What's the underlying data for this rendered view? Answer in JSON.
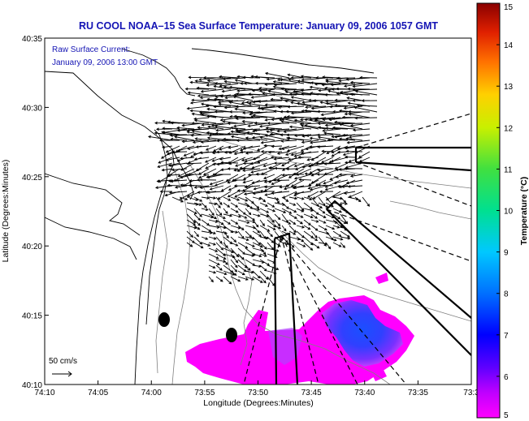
{
  "chart_data": {
    "type": "map",
    "title": "RU COOL  NOAA–15  Sea Surface Temperature:  January 09, 2006 1057 GMT",
    "annotation": {
      "line1": "Raw Surface Current:",
      "line2": "January 09, 2006 13:00 GMT"
    },
    "scale_label": "50 cm/s",
    "xlabel": "Longitude (Degrees:Minutes)",
    "ylabel": "Latitude (Degrees:Minutes)",
    "xticks": [
      "74:10",
      "74:05",
      "74:00",
      "73:55",
      "73:50",
      "73:45",
      "73:40",
      "73:35",
      "73:3"
    ],
    "yticks": [
      "40:35",
      "40:30",
      "40:25",
      "40:20",
      "40:15",
      "40:10"
    ],
    "colorbar": {
      "label": "Temperature (°C)",
      "range": [
        5,
        15
      ],
      "ticks": [
        "15",
        "14",
        "13",
        "12",
        "11",
        "10",
        "9",
        "8",
        "7",
        "6",
        "5"
      ]
    },
    "legend": "none",
    "grid": false
  }
}
